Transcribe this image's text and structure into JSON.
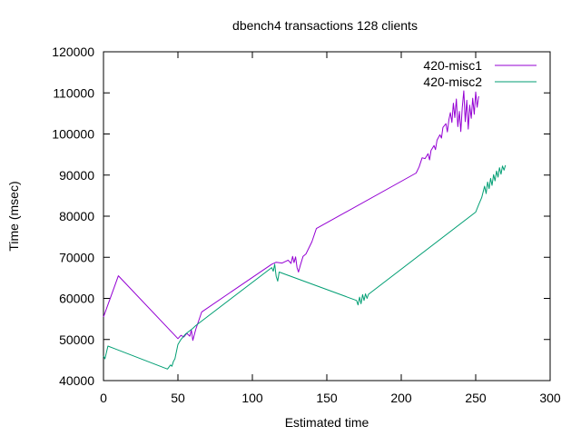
{
  "chart_data": {
    "type": "line",
    "title": "dbench4 transactions 128 clients",
    "xlabel": "Estimated time",
    "ylabel": "Time (msec)",
    "xlim": [
      0,
      300
    ],
    "ylim": [
      40000,
      120000
    ],
    "xticks": [
      0,
      50,
      100,
      150,
      200,
      250,
      300
    ],
    "yticks": [
      40000,
      50000,
      60000,
      70000,
      80000,
      90000,
      100000,
      110000,
      120000
    ],
    "grid": false,
    "legend_position": "top-right",
    "series": [
      {
        "name": "420-misc1",
        "color": "#9400d3",
        "points": [
          [
            0,
            55500
          ],
          [
            10,
            65500
          ],
          [
            50,
            50200
          ],
          [
            52,
            51000
          ],
          [
            54,
            50600
          ],
          [
            56,
            51500
          ],
          [
            58,
            50800
          ],
          [
            59,
            52300
          ],
          [
            60,
            49800
          ],
          [
            62,
            52500
          ],
          [
            66,
            56700
          ],
          [
            113,
            68300
          ],
          [
            116,
            68800
          ],
          [
            120,
            68600
          ],
          [
            124,
            69300
          ],
          [
            126,
            68500
          ],
          [
            127,
            70200
          ],
          [
            128,
            68700
          ],
          [
            129,
            70100
          ],
          [
            130,
            67500
          ],
          [
            131,
            66400
          ],
          [
            132,
            67800
          ],
          [
            134,
            70200
          ],
          [
            136,
            70800
          ],
          [
            140,
            73800
          ],
          [
            143,
            77000
          ],
          [
            210,
            90500
          ],
          [
            212,
            92000
          ],
          [
            214,
            94200
          ],
          [
            216,
            94000
          ],
          [
            218,
            95200
          ],
          [
            219,
            93700
          ],
          [
            220,
            96000
          ],
          [
            222,
            97200
          ],
          [
            223,
            96200
          ],
          [
            224,
            98500
          ],
          [
            226,
            99800
          ],
          [
            227,
            99000
          ],
          [
            228,
            101600
          ],
          [
            230,
            102500
          ],
          [
            231,
            100500
          ],
          [
            232,
            103500
          ],
          [
            233,
            105200
          ],
          [
            234,
            102800
          ],
          [
            235,
            107500
          ],
          [
            236,
            104000
          ],
          [
            237,
            108500
          ],
          [
            238,
            101800
          ],
          [
            239,
            105500
          ],
          [
            240,
            100600
          ],
          [
            241,
            106400
          ],
          [
            242,
            110500
          ],
          [
            243,
            103000
          ],
          [
            244,
            108200
          ],
          [
            245,
            101200
          ],
          [
            246,
            107000
          ],
          [
            247,
            103800
          ],
          [
            248,
            108700
          ],
          [
            249,
            104800
          ],
          [
            250,
            110200
          ],
          [
            251,
            106500
          ],
          [
            252,
            109200
          ]
        ]
      },
      {
        "name": "420-misc2",
        "color": "#009e73",
        "points": [
          [
            0,
            46000
          ],
          [
            1,
            45300
          ],
          [
            3,
            48400
          ],
          [
            43,
            42800
          ],
          [
            45,
            43800
          ],
          [
            46,
            43500
          ],
          [
            47,
            44700
          ],
          [
            48,
            45300
          ],
          [
            50,
            48800
          ],
          [
            52,
            50000
          ],
          [
            55,
            51300
          ],
          [
            60,
            52700
          ],
          [
            62,
            53400
          ],
          [
            113,
            67500
          ],
          [
            114,
            66600
          ],
          [
            115,
            68300
          ],
          [
            116,
            65400
          ],
          [
            117,
            64200
          ],
          [
            118,
            66400
          ],
          [
            170,
            59500
          ],
          [
            171,
            58400
          ],
          [
            172,
            60300
          ],
          [
            173,
            58700
          ],
          [
            174,
            60900
          ],
          [
            175,
            59500
          ],
          [
            176,
            61100
          ],
          [
            177,
            60000
          ],
          [
            178,
            61000
          ],
          [
            250,
            81000
          ],
          [
            252,
            82800
          ],
          [
            254,
            84500
          ],
          [
            256,
            87300
          ],
          [
            257,
            85500
          ],
          [
            258,
            88300
          ],
          [
            259,
            86700
          ],
          [
            260,
            89200
          ],
          [
            261,
            87500
          ],
          [
            262,
            90100
          ],
          [
            263,
            88600
          ],
          [
            264,
            91000
          ],
          [
            265,
            89500
          ],
          [
            266,
            91800
          ],
          [
            267,
            90200
          ],
          [
            268,
            92200
          ],
          [
            269,
            91200
          ],
          [
            270,
            92400
          ]
        ]
      }
    ]
  }
}
